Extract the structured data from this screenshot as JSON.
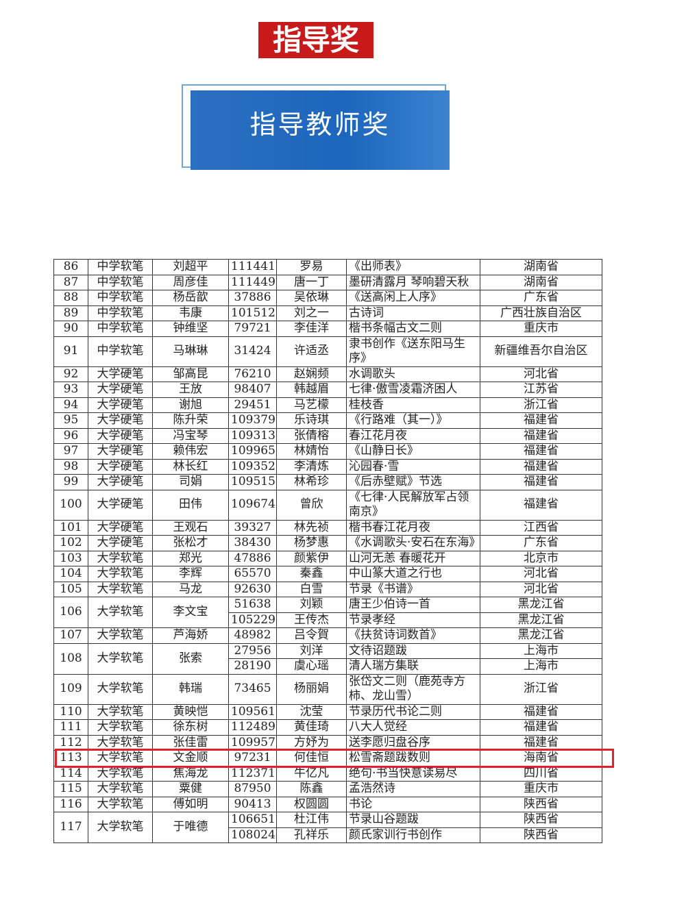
{
  "header": {
    "title": "指导奖",
    "banner": "指导教师奖"
  },
  "table": {
    "rows": [
      {
        "no": "86",
        "category": "中学软笔",
        "teacher": "刘超平",
        "entries": [
          [
            "111441",
            "罗易",
            "《出师表》",
            "湖南省"
          ]
        ]
      },
      {
        "no": "87",
        "category": "中学软笔",
        "teacher": "周彦佳",
        "entries": [
          [
            "111449",
            "唐一丁",
            "墨研清露月 琴响碧天秋",
            "湖南省"
          ]
        ]
      },
      {
        "no": "88",
        "category": "中学软笔",
        "teacher": "杨岳歆",
        "entries": [
          [
            "37886",
            "吴依琳",
            "《送高闲上人序》",
            "广东省"
          ]
        ]
      },
      {
        "no": "89",
        "category": "中学软笔",
        "teacher": "韦康",
        "entries": [
          [
            "101512",
            "刘之一",
            "古诗词",
            "广西壮族自治区"
          ]
        ]
      },
      {
        "no": "90",
        "category": "中学软笔",
        "teacher": "钟维坚",
        "entries": [
          [
            "79721",
            "李佳洋",
            "楷书条幅古文二则",
            "重庆市"
          ]
        ]
      },
      {
        "no": "91",
        "category": "中学软笔",
        "teacher": "马琳琳",
        "entries": [
          [
            "31424",
            "许适丞",
            "隶书创作《送东阳马生序》",
            "新疆维吾尔自治区"
          ]
        ]
      },
      {
        "no": "92",
        "category": "大学硬笔",
        "teacher": "邹高昆",
        "entries": [
          [
            "76210",
            "赵娴频",
            "水调歌头",
            "河北省"
          ]
        ]
      },
      {
        "no": "93",
        "category": "大学硬笔",
        "teacher": "王放",
        "entries": [
          [
            "98407",
            "韩越眉",
            "七律·傲雪凌霜济困人",
            "江苏省"
          ]
        ]
      },
      {
        "no": "94",
        "category": "大学硬笔",
        "teacher": "谢旭",
        "entries": [
          [
            "29451",
            "马艺檬",
            "桂枝香",
            "浙江省"
          ]
        ]
      },
      {
        "no": "95",
        "category": "大学硬笔",
        "teacher": "陈升荣",
        "entries": [
          [
            "109379",
            "乐诗琪",
            "《行路难（其一）》",
            "福建省"
          ]
        ]
      },
      {
        "no": "96",
        "category": "大学硬笔",
        "teacher": "冯宝琴",
        "entries": [
          [
            "109313",
            "张倩榕",
            "春江花月夜",
            "福建省"
          ]
        ]
      },
      {
        "no": "97",
        "category": "大学硬笔",
        "teacher": "赖伟宏",
        "entries": [
          [
            "109965",
            "林婧怡",
            "《山静日长》",
            "福建省"
          ]
        ]
      },
      {
        "no": "98",
        "category": "大学硬笔",
        "teacher": "林长红",
        "entries": [
          [
            "109352",
            "李清炼",
            "沁园春·雪",
            "福建省"
          ]
        ]
      },
      {
        "no": "99",
        "category": "大学硬笔",
        "teacher": "司娟",
        "entries": [
          [
            "109515",
            "林希珍",
            "《后赤壁赋》节选",
            "福建省"
          ]
        ]
      },
      {
        "no": "100",
        "category": "大学硬笔",
        "teacher": "田伟",
        "entries": [
          [
            "109674",
            "曾欣",
            "《七律·人民解放军占领南京》",
            "福建省"
          ]
        ]
      },
      {
        "no": "101",
        "category": "大学硬笔",
        "teacher": "王观石",
        "entries": [
          [
            "39327",
            "林先祯",
            "楷书春江花月夜",
            "江西省"
          ]
        ]
      },
      {
        "no": "102",
        "category": "大学硬笔",
        "teacher": "张松才",
        "entries": [
          [
            "38430",
            "杨梦惠",
            "《水调歌头·安石在东海》",
            "广东省"
          ]
        ]
      },
      {
        "no": "103",
        "category": "大学软笔",
        "teacher": "郑光",
        "entries": [
          [
            "47886",
            "颜紫伊",
            "山河无恙 春暖花开",
            "北京市"
          ]
        ]
      },
      {
        "no": "104",
        "category": "大学软笔",
        "teacher": "李辉",
        "entries": [
          [
            "65570",
            "秦鑫",
            "中山篆大道之行也",
            "河北省"
          ]
        ]
      },
      {
        "no": "105",
        "category": "大学软笔",
        "teacher": "马龙",
        "entries": [
          [
            "92630",
            "白雪",
            "节录《书谱》",
            "河北省"
          ]
        ]
      },
      {
        "no": "106",
        "category": "大学软笔",
        "teacher": "李文宝",
        "entries": [
          [
            "51638",
            "刘颖",
            "唐王少伯诗一首",
            "黑龙江省"
          ],
          [
            "105229",
            "王传杰",
            "节录孝经",
            "黑龙江省"
          ]
        ]
      },
      {
        "no": "107",
        "category": "大学软笔",
        "teacher": "芦海娇",
        "entries": [
          [
            "48982",
            "吕令賀",
            "《扶贫诗词数首》",
            "黑龙江省"
          ]
        ]
      },
      {
        "no": "108",
        "category": "大学软笔",
        "teacher": "张索",
        "entries": [
          [
            "27956",
            "刘洋",
            "文待诏题跋",
            "上海市"
          ],
          [
            "28190",
            "虞心瑶",
            "清人瑞方集联",
            "上海市"
          ]
        ]
      },
      {
        "no": "109",
        "category": "大学软笔",
        "teacher": "韩瑞",
        "entries": [
          [
            "73465",
            "杨丽娟",
            "张岱文二则（鹿苑寺方柿、龙山雪）",
            "浙江省"
          ]
        ]
      },
      {
        "no": "110",
        "category": "大学软笔",
        "teacher": "黄映恺",
        "entries": [
          [
            "109561",
            "沈莹",
            "节录历代书论二则",
            "福建省"
          ]
        ]
      },
      {
        "no": "111",
        "category": "大学软笔",
        "teacher": "徐东树",
        "entries": [
          [
            "112489",
            "黄佳琦",
            "八大人觉经",
            "福建省"
          ]
        ]
      },
      {
        "no": "112",
        "category": "大学软笔",
        "teacher": "张佳雷",
        "entries": [
          [
            "109957",
            "方妤为",
            "送李愿归盘谷序",
            "福建省"
          ]
        ]
      },
      {
        "no": "113",
        "category": "大学软笔",
        "teacher": "文金顺",
        "entries": [
          [
            "97231",
            "何佳恒",
            "松雪斋题跋数则",
            "海南省"
          ]
        ]
      },
      {
        "no": "114",
        "category": "大学软笔",
        "teacher": "焦海龙",
        "entries": [
          [
            "112371",
            "牛亿凡",
            "绝句·书当快意读易尽",
            "四川省"
          ]
        ]
      },
      {
        "no": "115",
        "category": "大学软笔",
        "teacher": "粟健",
        "entries": [
          [
            "87950",
            "陈鑫",
            "孟浩然诗",
            "重庆市"
          ]
        ]
      },
      {
        "no": "116",
        "category": "大学软笔",
        "teacher": "傅如明",
        "entries": [
          [
            "90413",
            "权圆圆",
            "书论",
            "陕西省"
          ]
        ]
      },
      {
        "no": "117",
        "category": "大学软笔",
        "teacher": "于唯德",
        "entries": [
          [
            "106651",
            "杜江伟",
            "节录山谷题跋",
            "陕西省"
          ],
          [
            "108024",
            "孔祥乐",
            "颜氏家训行书创作",
            "陕西省"
          ]
        ]
      }
    ]
  }
}
